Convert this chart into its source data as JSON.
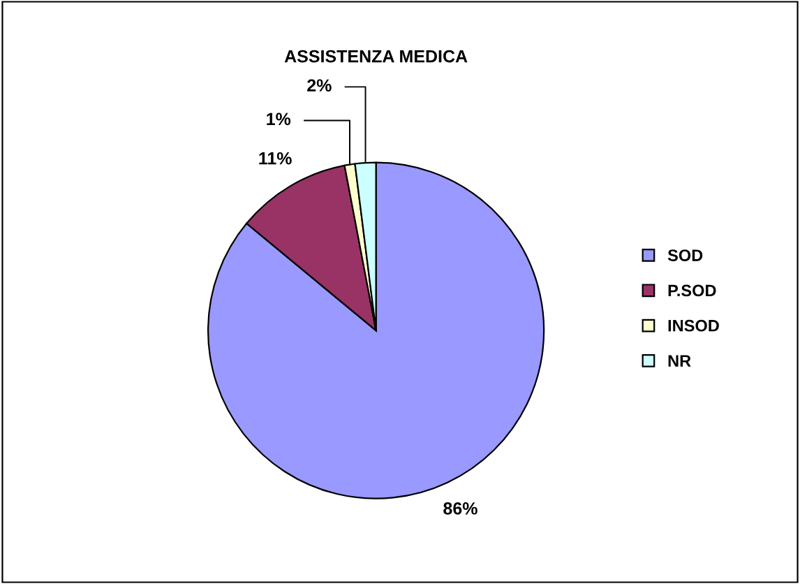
{
  "chart_data": {
    "type": "pie",
    "title": "ASSISTENZA MEDICA",
    "categories": [
      "SOD",
      "P.SOD",
      "INSOD",
      "NR"
    ],
    "values": [
      86,
      11,
      1,
      2
    ],
    "value_labels": [
      "86%",
      "11%",
      "1%",
      "2%"
    ],
    "colors": [
      "#9999ff",
      "#993366",
      "#ffffcc",
      "#ccffff"
    ],
    "legend": "right"
  }
}
